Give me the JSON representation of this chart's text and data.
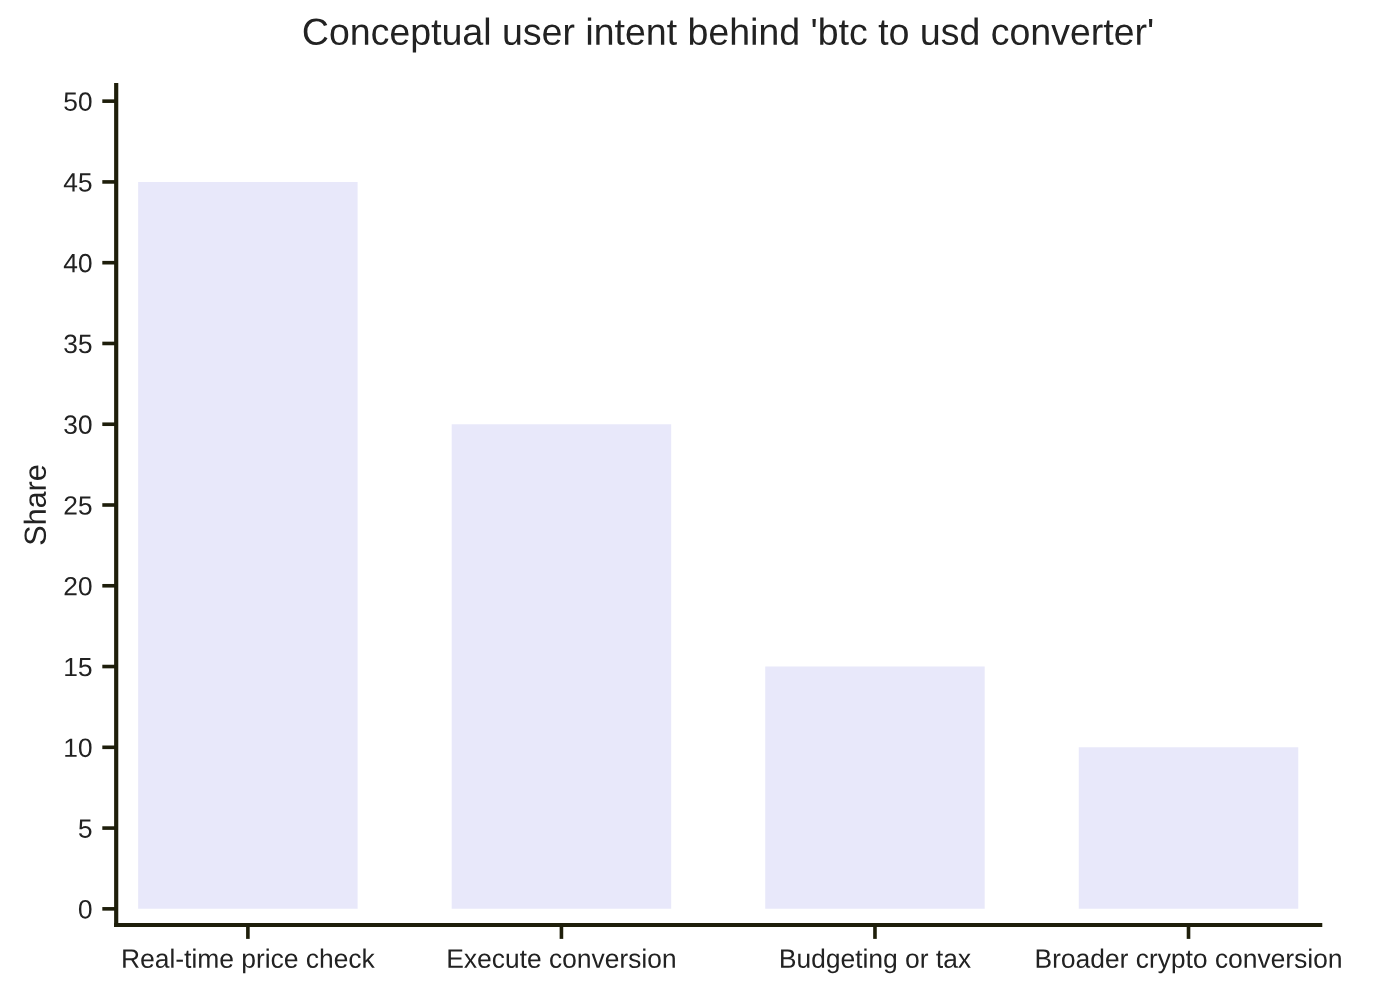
{
  "chart_data": {
    "type": "bar",
    "title": "Conceptual user intent behind 'btc to usd converter'",
    "ylabel": "Share",
    "categories": [
      "Real-time price check",
      "Execute conversion",
      "Budgeting or tax",
      "Broader crypto conversion"
    ],
    "values": [
      45,
      30,
      15,
      10
    ],
    "color": "#e8e8fa",
    "ylim": [
      -1,
      51
    ],
    "yticks": [
      0,
      5,
      10,
      15,
      20,
      25,
      30,
      35,
      40,
      45,
      50
    ],
    "grid": false
  }
}
